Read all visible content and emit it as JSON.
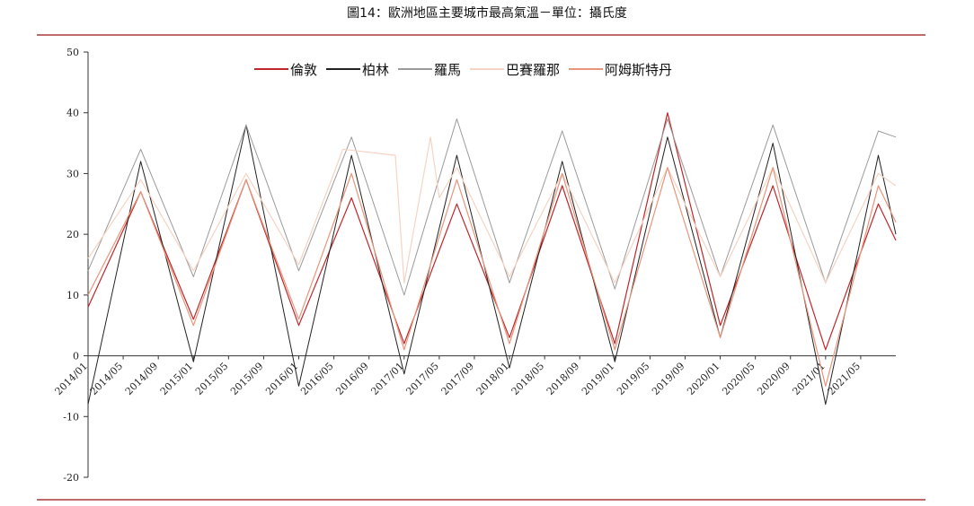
{
  "title": "圖14：歐洲地區主要城市最高氣溫－單位：攝氏度",
  "chart_data": {
    "type": "line",
    "title": "圖14：歐洲地區主要城市最高氣溫－單位：攝氏度",
    "xlabel": "",
    "ylabel": "",
    "ylim": [
      -20,
      50
    ],
    "yticks": [
      -20,
      -10,
      0,
      10,
      20,
      30,
      40,
      50
    ],
    "xrange": [
      "2014-01",
      "2021-09"
    ],
    "xticks": [
      "2014/01",
      "2014/05",
      "2014/09",
      "2015/01",
      "2015/05",
      "2015/09",
      "2016/01",
      "2016/05",
      "2016/09",
      "2017/01",
      "2017/05",
      "2017/09",
      "2018/01",
      "2018/05",
      "2018/09",
      "2019/01",
      "2019/05",
      "2019/09",
      "2020/01",
      "2020/05",
      "2020/09",
      "2021/01",
      "2021/05"
    ],
    "legend_position": "top",
    "grid": false,
    "series": [
      {
        "name": "倫敦",
        "color": "#c0262b",
        "width": 1.2,
        "x": [
          "2014-01",
          "2014-07",
          "2015-01",
          "2015-07",
          "2016-01",
          "2016-07",
          "2017-01",
          "2017-07",
          "2018-01",
          "2018-07",
          "2019-01",
          "2019-07",
          "2020-01",
          "2020-07",
          "2021-01",
          "2021-07",
          "2021-09"
        ],
        "values": [
          8,
          27,
          6,
          29,
          5,
          26,
          2,
          25,
          3,
          28,
          2,
          40,
          5,
          28,
          1,
          25,
          19
        ]
      },
      {
        "name": "柏林",
        "color": "#222222",
        "width": 1.0,
        "x": [
          "2014-01",
          "2014-07",
          "2015-01",
          "2015-07",
          "2016-01",
          "2016-07",
          "2017-01",
          "2017-07",
          "2018-01",
          "2018-07",
          "2019-01",
          "2019-07",
          "2020-01",
          "2020-07",
          "2021-01",
          "2021-07",
          "2021-09"
        ],
        "values": [
          -8,
          32,
          -1,
          38,
          -5,
          33,
          -3,
          33,
          -2,
          32,
          -1,
          36,
          3,
          35,
          -8,
          33,
          20
        ]
      },
      {
        "name": "羅馬",
        "color": "#9a9a9a",
        "width": 1.0,
        "x": [
          "2014-01",
          "2014-07",
          "2015-01",
          "2015-07",
          "2016-01",
          "2016-07",
          "2017-01",
          "2017-07",
          "2018-01",
          "2018-07",
          "2019-01",
          "2019-07",
          "2020-01",
          "2020-07",
          "2021-01",
          "2021-07",
          "2021-09"
        ],
        "values": [
          14,
          34,
          13,
          38,
          14,
          36,
          10,
          39,
          12,
          37,
          11,
          39,
          13,
          38,
          12,
          37,
          36
        ]
      },
      {
        "name": "巴賽羅那",
        "color": "#f6d3c4",
        "width": 1.2,
        "x": [
          "2014-01",
          "2014-07",
          "2015-01",
          "2015-07",
          "2016-01",
          "2016-05",
          "2016-06",
          "2016-12",
          "2017-01",
          "2017-04",
          "2017-05",
          "2017-07",
          "2018-01",
          "2018-07",
          "2019-01",
          "2019-07",
          "2020-01",
          "2020-07",
          "2021-01",
          "2021-07",
          "2021-09"
        ],
        "values": [
          16,
          29,
          14,
          30,
          15,
          30,
          34,
          33,
          12,
          36,
          26,
          31,
          13,
          30,
          12,
          31,
          13,
          31,
          12,
          30,
          28
        ]
      },
      {
        "name": "阿姆斯特丹",
        "color": "#e8957a",
        "width": 1.2,
        "x": [
          "2014-01",
          "2014-07",
          "2015-01",
          "2015-07",
          "2016-01",
          "2016-07",
          "2017-01",
          "2017-07",
          "2018-01",
          "2018-07",
          "2019-01",
          "2019-07",
          "2020-01",
          "2020-07",
          "2021-01",
          "2021-07",
          "2021-09"
        ],
        "values": [
          10,
          27,
          5,
          29,
          6,
          30,
          1,
          29,
          2,
          30,
          1,
          31,
          3,
          31,
          -5,
          28,
          22
        ]
      }
    ]
  }
}
